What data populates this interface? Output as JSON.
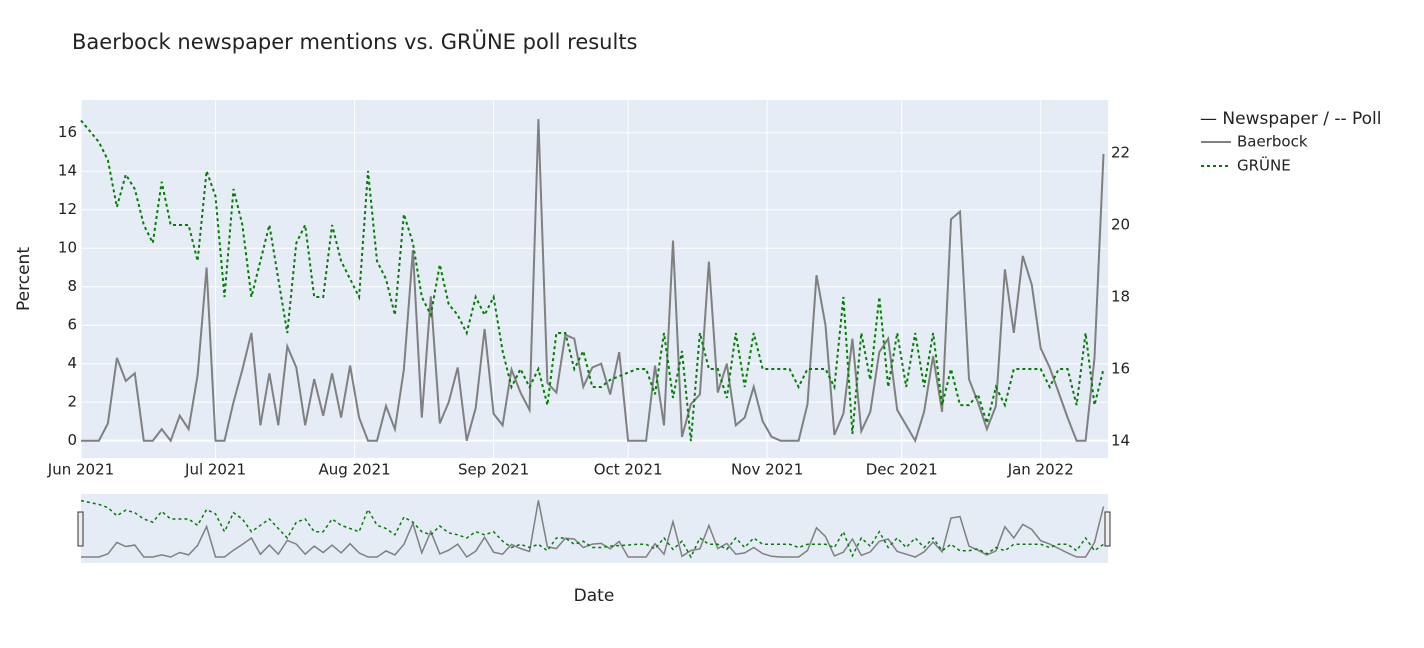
{
  "chart_data": {
    "type": "line",
    "title": "Baerbock newspaper mentions vs. GRÜNE poll results",
    "x_label": "Date",
    "y_label": "Percent",
    "legend_title": "— Newspaper / -- Poll",
    "legend_position": "right",
    "grid": true,
    "range_slider": true,
    "x": [
      0,
      2,
      4,
      6,
      8,
      10,
      12,
      14,
      16,
      18,
      20,
      22,
      24,
      26,
      28,
      30,
      32,
      34,
      36,
      38,
      40,
      42,
      44,
      46,
      48,
      50,
      52,
      54,
      56,
      58,
      60,
      62,
      64,
      66,
      68,
      70,
      72,
      74,
      76,
      78,
      80,
      82,
      84,
      86,
      88,
      90,
      92,
      94,
      96,
      98,
      100,
      102,
      104,
      106,
      108,
      110,
      112,
      114,
      116,
      118,
      120,
      122,
      124,
      126,
      128,
      130,
      132,
      134,
      136,
      138,
      140,
      142,
      144,
      146,
      148,
      150,
      152,
      154,
      156,
      158,
      160,
      162,
      164,
      166,
      168,
      170,
      172,
      174,
      176,
      178,
      180,
      182,
      184,
      186,
      188,
      190,
      192,
      194,
      196,
      198,
      200,
      202,
      204,
      206,
      208,
      210,
      212,
      214,
      216,
      218,
      220,
      222,
      224,
      226,
      228
    ],
    "xlim": [
      0,
      229
    ],
    "xticks": [
      {
        "value": 0,
        "label": "Jun 2021"
      },
      {
        "value": 30,
        "label": "Jul 2021"
      },
      {
        "value": 61,
        "label": "Aug 2021"
      },
      {
        "value": 92,
        "label": "Sep 2021"
      },
      {
        "value": 122,
        "label": "Oct 2021"
      },
      {
        "value": 153,
        "label": "Nov 2021"
      },
      {
        "value": 183,
        "label": "Dec 2021"
      },
      {
        "value": 214,
        "label": "Jan 2022"
      }
    ],
    "ylim": [
      -0.9,
      17.7
    ],
    "yticks": [
      0,
      2,
      4,
      6,
      8,
      10,
      12,
      14,
      16
    ],
    "y2lim": [
      13.53,
      23.47
    ],
    "y2ticks": [
      14,
      16,
      18,
      20,
      22
    ],
    "series": [
      {
        "name": "Baerbock",
        "color": "#808080",
        "dash": "solid",
        "values": [
          0,
          0,
          0,
          0.9,
          4.3,
          3.1,
          3.5,
          0,
          0,
          0.6,
          0,
          1.3,
          0.6,
          3.4,
          9,
          0,
          0,
          2,
          3.7,
          5.6,
          0.8,
          3.5,
          0.8,
          4.9,
          3.8,
          0.8,
          3.2,
          1.3,
          3.5,
          1.2,
          3.9,
          1.2,
          0,
          0,
          1.8,
          0.6,
          3.7,
          9.9,
          1.2,
          7.5,
          0.9,
          2,
          3.8,
          0,
          1.7,
          5.8,
          1.4,
          0.8,
          3.7,
          2.5,
          1.6,
          16.7,
          3,
          2.5,
          5.5,
          5.3,
          2.8,
          3.8,
          4,
          2.4,
          4.6,
          0,
          0,
          0,
          3.9,
          0.8,
          10.4,
          0.2,
          1.9,
          2.4,
          9.3,
          2.5,
          4,
          0.8,
          1.2,
          2.8,
          1,
          0.2,
          0,
          0,
          0,
          1.9,
          8.6,
          6,
          0.3,
          1.4,
          5.3,
          0.5,
          1.5,
          4.6,
          5.3,
          1.6,
          0.8,
          0,
          1.5,
          4.4,
          1.5,
          11.5,
          11.9,
          3.2,
          2,
          0.6,
          1.8,
          8.9,
          5.6,
          9.6,
          8.1,
          4.8,
          3.8,
          2.5,
          1.2,
          0,
          0,
          4.3,
          14.9
        ]
      },
      {
        "name": "GRÜNE",
        "color": "#008000",
        "dash": "dot",
        "axis": "y2",
        "values": [
          22.9,
          22.6,
          22.3,
          21.8,
          20.5,
          21.4,
          21,
          20,
          19.5,
          21.2,
          20,
          20,
          20,
          19,
          21.5,
          20.8,
          18,
          21,
          20,
          18,
          19,
          20,
          18.5,
          17,
          19.5,
          20,
          18,
          18,
          20,
          19,
          18.5,
          18,
          21.5,
          19,
          18.5,
          17.5,
          20.3,
          19.5,
          18,
          17.5,
          18.9,
          17.8,
          17.5,
          17,
          18,
          17.5,
          18,
          16.5,
          15.5,
          16,
          15.5,
          16,
          15,
          17,
          17,
          16,
          16.5,
          15.5,
          15.5,
          15.7,
          15.8,
          15.9,
          16,
          16,
          15.3,
          17,
          15.2,
          16.5,
          14,
          17,
          16,
          16,
          15.2,
          17,
          15.5,
          17,
          16,
          16,
          16,
          16,
          15.5,
          16,
          16,
          16,
          15.5,
          18,
          14.2,
          17,
          15.7,
          18,
          15.5,
          17,
          15.5,
          17,
          15.5,
          17,
          15,
          16,
          15,
          15,
          15.3,
          14.5,
          15.5,
          15,
          16,
          16,
          16,
          16,
          15.5,
          16,
          16,
          15,
          17,
          15,
          16
        ]
      }
    ]
  }
}
